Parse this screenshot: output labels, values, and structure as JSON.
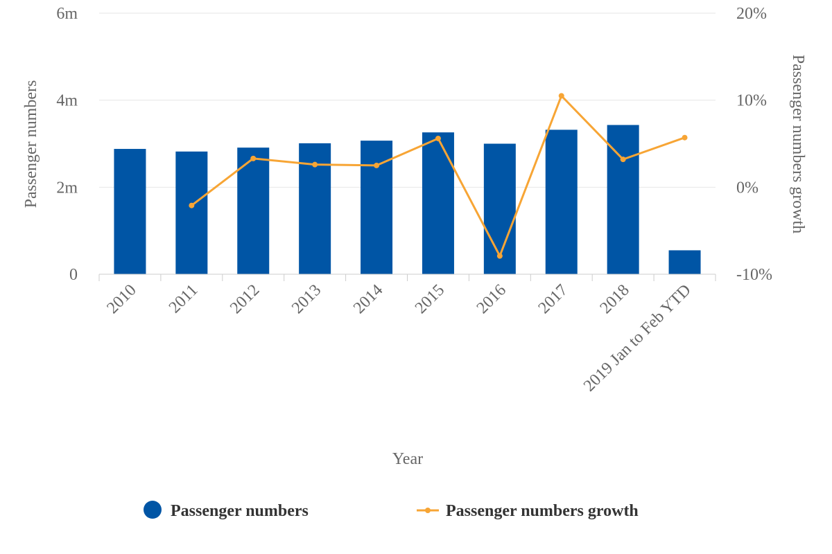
{
  "chart_data": {
    "type": "bar",
    "categories": [
      "2010",
      "2011",
      "2012",
      "2013",
      "2014",
      "2015",
      "2016",
      "2017",
      "2018",
      "2019 Jan to Feb YTD"
    ],
    "series": [
      {
        "name": "Passenger numbers",
        "type": "bar",
        "axis": "left",
        "color": "#0055a5",
        "values": [
          2880000,
          2820000,
          2910000,
          3010000,
          3070000,
          3260000,
          3000000,
          3320000,
          3430000,
          550000
        ]
      },
      {
        "name": "Passenger numbers growth",
        "type": "line",
        "axis": "right",
        "color": "#f7a535",
        "values": [
          null,
          -2.1,
          3.3,
          2.6,
          2.5,
          5.6,
          -7.9,
          10.5,
          3.2,
          5.7
        ]
      }
    ],
    "xlabel": "Year",
    "ylabel": "Passenger numbers",
    "y2label": "Passenger numbers growth",
    "ylim": [
      0,
      6000000
    ],
    "y2lim": [
      -10,
      20
    ],
    "y_ticks": [
      {
        "value": 0,
        "label": "0"
      },
      {
        "value": 2000000,
        "label": "2m"
      },
      {
        "value": 4000000,
        "label": "4m"
      },
      {
        "value": 6000000,
        "label": "6m"
      }
    ],
    "y2_ticks": [
      {
        "value": -10,
        "label": "-10%"
      },
      {
        "value": 0,
        "label": "0%"
      },
      {
        "value": 10,
        "label": "10%"
      },
      {
        "value": 20,
        "label": "20%"
      }
    ],
    "grid": true,
    "legend_position": "bottom"
  }
}
